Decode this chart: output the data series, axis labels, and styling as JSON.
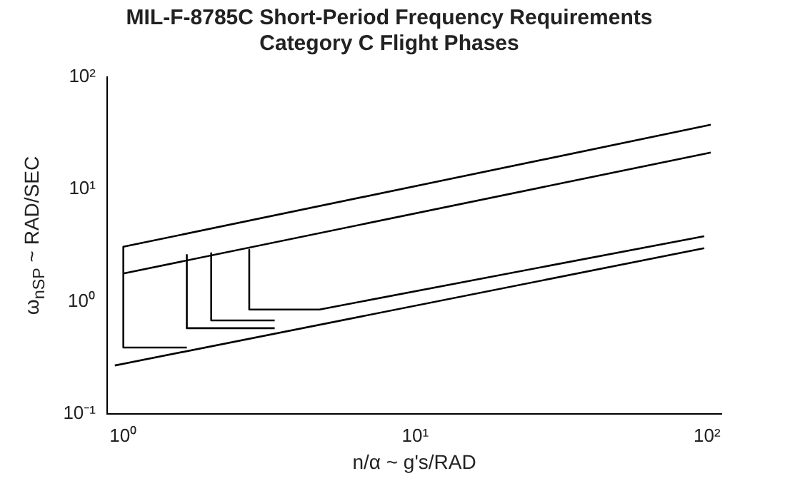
{
  "chart_data": {
    "type": "line",
    "title": "MIL-F-8785C Short-Period Frequency Requirements",
    "subtitle": "Category C Flight Phases",
    "xlabel": "n/α ~ g's/RAD",
    "ylabel": "ω$_{nSP}$ ~ RAD/SEC",
    "log": "xy",
    "grid": false,
    "legend": false,
    "marker": "none",
    "line_style": "solid",
    "xlim": [
      0.88,
      112
    ],
    "xticks": [
      {
        "value": 1,
        "label": "10⁰"
      },
      {
        "value": 10,
        "label": "10¹"
      },
      {
        "value": 100,
        "label": "10²"
      }
    ],
    "ylim": [
      0.1,
      100
    ],
    "yticks": [
      {
        "value": 0.1,
        "label": "10⁻¹"
      },
      {
        "value": 1,
        "label": "10⁰"
      },
      {
        "value": 10,
        "label": "10¹"
      },
      {
        "value": 100,
        "label": "10²"
      }
    ],
    "series": [
      {
        "color": "#000000",
        "x": [
          1,
          1,
          1.65
        ],
        "values": [
          3.08,
          0.39,
          0.39
        ]
      },
      {
        "color": "#000000",
        "x": [
          1,
          103
        ],
        "values": [
          3.08,
          37.6
        ]
      },
      {
        "color": "#000000",
        "x": [
          1,
          103
        ],
        "values": [
          1.78,
          21.3
        ]
      },
      {
        "color": "#000000",
        "x": [
          1.65,
          1.65,
          3.3
        ],
        "values": [
          2.6,
          0.58,
          0.58
        ]
      },
      {
        "color": "#000000",
        "x": [
          2,
          2,
          3.3
        ],
        "values": [
          2.7,
          0.68,
          0.68
        ]
      },
      {
        "color": "#000000",
        "x": [
          2.7,
          2.7,
          4.7,
          97.8
        ],
        "values": [
          2.9,
          0.85,
          0.85,
          3.83
        ]
      },
      {
        "color": "#000000",
        "x": [
          0.935,
          97.8
        ],
        "values": [
          0.27,
          2.99
        ]
      }
    ]
  }
}
